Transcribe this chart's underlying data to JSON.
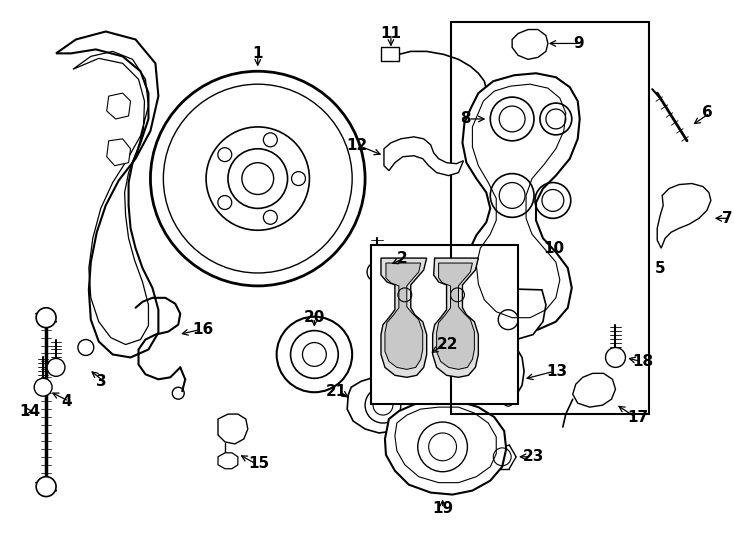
{
  "background_color": "#ffffff",
  "line_color": "#000000",
  "fig_width": 7.34,
  "fig_height": 5.4,
  "dpi": 100,
  "font_size": 10,
  "font_weight": "bold",
  "label_fontsize": 11
}
